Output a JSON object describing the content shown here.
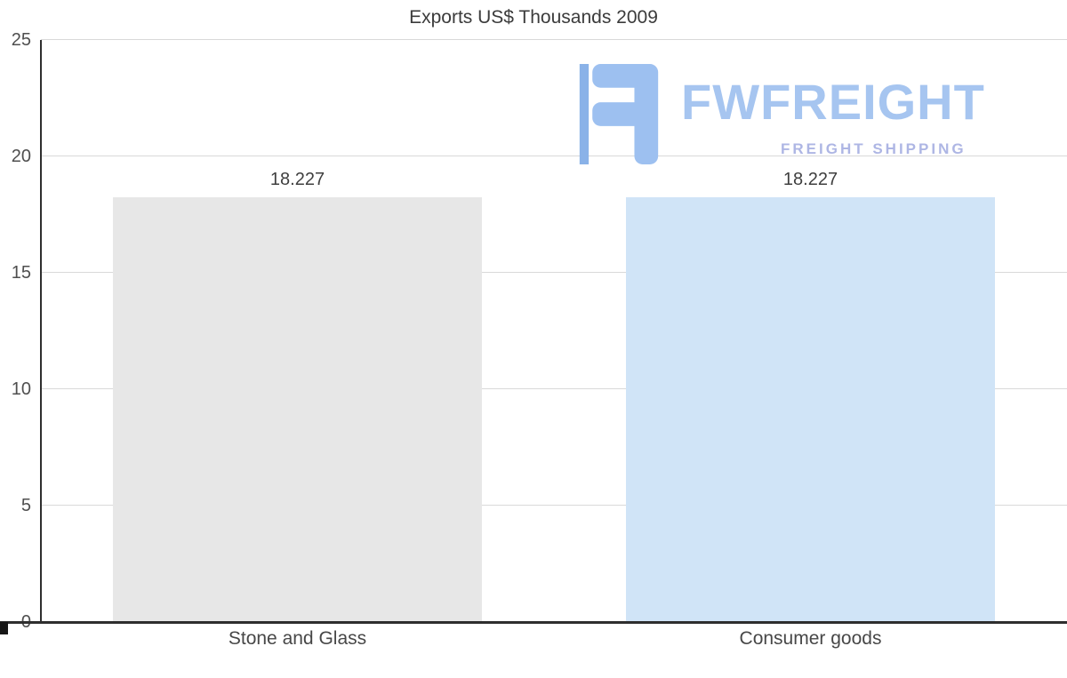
{
  "chart_data": {
    "type": "bar",
    "title": "Exports US$ Thousands 2009",
    "categories": [
      "Stone and Glass",
      "Consumer goods"
    ],
    "values": [
      18.227,
      18.227
    ],
    "value_labels": [
      "18.227",
      "18.227"
    ],
    "series_colors": [
      "#e7e7e7",
      "#d0e4f7"
    ],
    "xlabel": "",
    "ylabel": "",
    "ylim": [
      0,
      25
    ],
    "yticks": [
      0,
      5,
      10,
      15,
      20,
      25
    ],
    "grid": true,
    "legend": "none",
    "axis_color": "#2e2e2e",
    "grid_color": "#d9d9d9"
  },
  "watermark": {
    "brand": "FWFREIGHT",
    "tagline": "FREIGHT SHIPPING",
    "brand_color": "#a6c5f0",
    "tagline_color": "#aeb6e4"
  }
}
